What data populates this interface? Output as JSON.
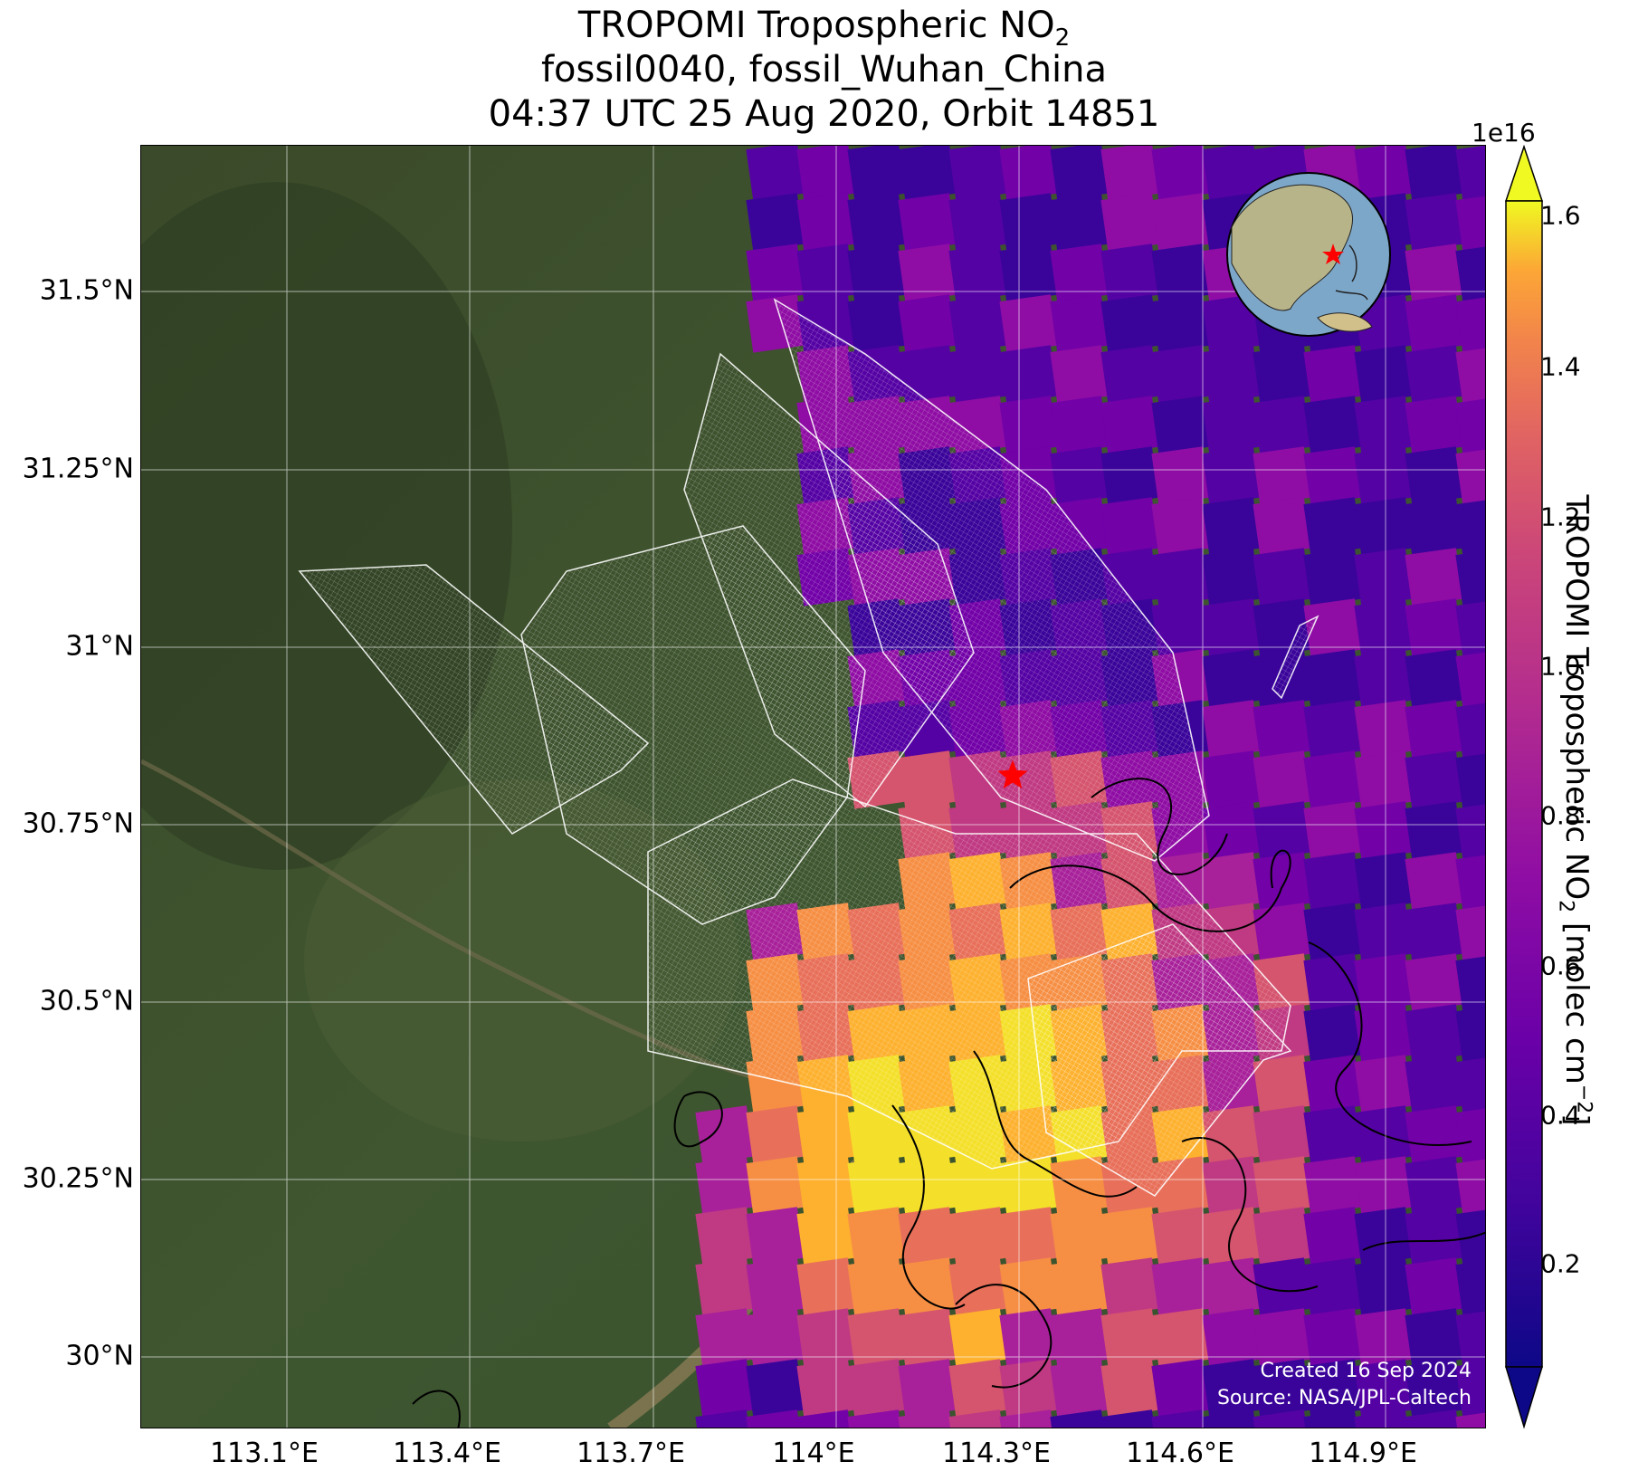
{
  "title": {
    "line1_main": "TROPOMI Tropospheric NO",
    "line1_sub": "2",
    "line2": "fossil0040, fossil_Wuhan_China",
    "line3": "04:37 UTC 25 Aug 2020, Orbit 14851"
  },
  "map": {
    "lat_ticks": [
      "31.5°N",
      "31.25°N",
      "31°N",
      "30.75°N",
      "30.5°N",
      "30.25°N",
      "30°N"
    ],
    "lon_ticks": [
      "113.1°E",
      "113.4°E",
      "113.7°E",
      "114°E",
      "114.3°E",
      "114.6°E",
      "114.9°E"
    ],
    "target_marker": "red-star",
    "credits": [
      "Created 16 Sep 2024",
      "Source: NASA/JPL-Caltech"
    ]
  },
  "colorbar": {
    "exponent": "1e16",
    "ticks": [
      "0.2",
      "0.4",
      "0.6",
      "0.8",
      "1.0",
      "1.2",
      "1.4",
      "1.6"
    ],
    "label_main": "TROPOMI Tropospheric NO",
    "label_sub": "2",
    "label_units": " [molec cm",
    "label_exp": "−2",
    "label_end": "]",
    "colormap": "plasma"
  },
  "colors": {
    "background": "#ffffff",
    "marker": "#ff0000"
  }
}
